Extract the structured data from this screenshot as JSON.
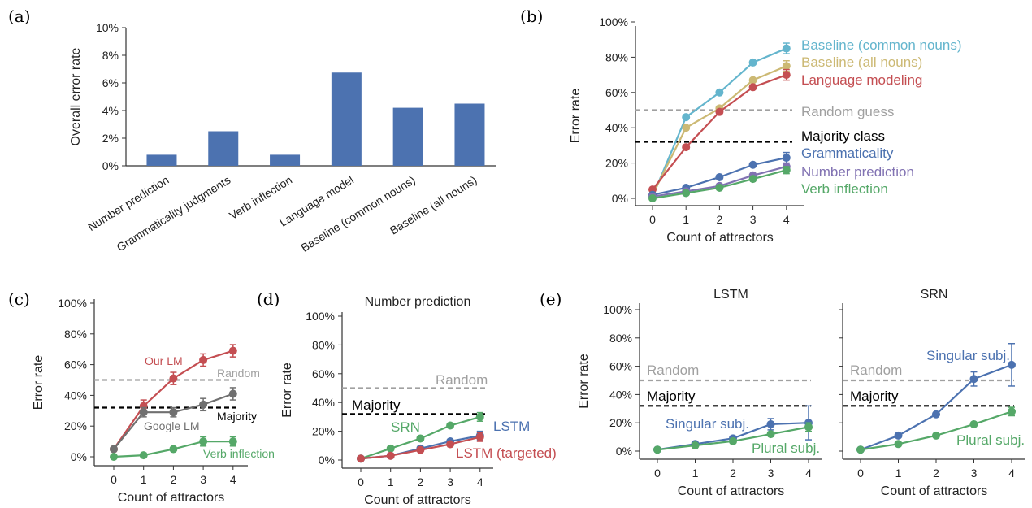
{
  "panels": {
    "a": "(a)",
    "b": "(b)",
    "c": "(c)",
    "d": "(d)",
    "e": "(e)"
  },
  "colors": {
    "blue": "#4c72b0",
    "cyan": "#64b5cd",
    "tan": "#ccb974",
    "red": "#c44e52",
    "gray": "#a0a0a0",
    "darkgray": "#707070",
    "purple": "#8172b2",
    "green": "#55a868",
    "black": "#000000"
  },
  "chart_data": [
    {
      "id": "a",
      "type": "bar",
      "ylabel": "Overall error rate",
      "ylim": [
        0,
        10
      ],
      "yticks": [
        0,
        2,
        4,
        6,
        8,
        10
      ],
      "tick_suffix": "%",
      "categories": [
        "Number prediction",
        "Grammaticality judgments",
        "Verb inflection",
        "Language model",
        "Baseline (common nouns)",
        "Baseline (all nouns)"
      ],
      "values": [
        0.8,
        2.5,
        0.8,
        6.75,
        4.2,
        4.5
      ]
    },
    {
      "id": "b",
      "type": "line",
      "xlabel": "Count of attractors",
      "ylabel": "Error rate",
      "x": [
        0,
        1,
        2,
        3,
        4
      ],
      "ylim": [
        0,
        100
      ],
      "yticks": [
        0,
        20,
        40,
        60,
        80,
        100
      ],
      "tick_suffix": "%",
      "series": [
        {
          "name": "Baseline (common nouns)",
          "color": "#64b5cd",
          "values": [
            1,
            46,
            60,
            77,
            85
          ],
          "err": [
            0,
            0,
            0,
            0,
            3
          ]
        },
        {
          "name": "Baseline (all nouns)",
          "color": "#ccb974",
          "values": [
            2,
            40,
            51,
            67,
            75
          ],
          "err": [
            0,
            0,
            0,
            0,
            3
          ]
        },
        {
          "name": "Language modeling",
          "color": "#c44e52",
          "values": [
            5,
            29,
            49,
            63,
            70
          ],
          "err": [
            0,
            0,
            0,
            0,
            3
          ]
        },
        {
          "name": "Grammaticality",
          "color": "#4c72b0",
          "values": [
            2,
            6,
            12,
            19,
            23
          ],
          "err": [
            0,
            0,
            0,
            0,
            3
          ]
        },
        {
          "name": "Number prediction",
          "color": "#8172b2",
          "values": [
            1,
            4,
            7,
            13,
            18
          ],
          "err": [
            0,
            0,
            0,
            0,
            2
          ]
        },
        {
          "name": "Verb inflection",
          "color": "#55a868",
          "values": [
            0,
            3,
            6,
            11,
            16
          ],
          "err": [
            0,
            0,
            0,
            0,
            2
          ]
        }
      ],
      "reference_lines": [
        {
          "name": "Random guess",
          "value": 50,
          "color": "#a0a0a0"
        },
        {
          "name": "Majority class",
          "value": 32,
          "color": "#000000"
        }
      ]
    },
    {
      "id": "c",
      "type": "line",
      "xlabel": "Count of attractors",
      "ylabel": "Error rate",
      "x": [
        0,
        1,
        2,
        3,
        4
      ],
      "ylim": [
        0,
        100
      ],
      "yticks": [
        0,
        20,
        40,
        60,
        80,
        100
      ],
      "tick_suffix": "%",
      "series": [
        {
          "name": "Our LM",
          "color": "#c44e52",
          "values": [
            5,
            33,
            51,
            63,
            69
          ],
          "err": [
            0,
            4,
            4,
            4,
            4
          ]
        },
        {
          "name": "Google LM",
          "color": "#707070",
          "values": [
            5,
            29,
            29,
            34,
            41
          ],
          "err": [
            0,
            3,
            3,
            4,
            4
          ]
        },
        {
          "name": "Verb inflection",
          "color": "#55a868",
          "values": [
            0,
            1,
            5,
            10,
            10
          ],
          "err": [
            0,
            1,
            1,
            3,
            3
          ]
        }
      ],
      "reference_lines": [
        {
          "name": "Random",
          "value": 50,
          "color": "#a0a0a0"
        },
        {
          "name": "Majority",
          "value": 32,
          "color": "#000000"
        }
      ]
    },
    {
      "id": "d",
      "type": "line",
      "title": "Number prediction",
      "xlabel": "Count of attractors",
      "ylabel": "Error rate",
      "x": [
        0,
        1,
        2,
        3,
        4
      ],
      "ylim": [
        0,
        100
      ],
      "yticks": [
        0,
        20,
        40,
        60,
        80,
        100
      ],
      "tick_suffix": "%",
      "series": [
        {
          "name": "SRN",
          "color": "#55a868",
          "values": [
            1,
            8,
            15,
            24,
            30
          ],
          "err": [
            0,
            0,
            0,
            0,
            3
          ]
        },
        {
          "name": "LSTM",
          "color": "#4c72b0",
          "values": [
            1,
            3,
            8,
            13,
            17
          ],
          "err": [
            0,
            0,
            0,
            0,
            3
          ]
        },
        {
          "name": "LSTM (targeted)",
          "color": "#c44e52",
          "values": [
            1,
            3,
            7,
            11,
            16
          ],
          "err": [
            0,
            0,
            0,
            0,
            3
          ]
        }
      ],
      "reference_lines": [
        {
          "name": "Random",
          "value": 50,
          "color": "#a0a0a0"
        },
        {
          "name": "Majority",
          "value": 32,
          "color": "#000000"
        }
      ]
    },
    {
      "id": "e1",
      "type": "line",
      "title": "LSTM",
      "xlabel": "Count of attractors",
      "ylabel": "Error rate",
      "x": [
        0,
        1,
        2,
        3,
        4
      ],
      "ylim": [
        0,
        100
      ],
      "yticks": [
        0,
        20,
        40,
        60,
        80,
        100
      ],
      "tick_suffix": "%",
      "series": [
        {
          "name": "Singular subj.",
          "color": "#4c72b0",
          "values": [
            1,
            5,
            9,
            19,
            20
          ],
          "err": [
            0,
            0,
            0,
            4,
            12
          ]
        },
        {
          "name": "Plural subj.",
          "color": "#55a868",
          "values": [
            1,
            4,
            7,
            12,
            17
          ],
          "err": [
            0,
            0,
            0,
            0,
            3
          ]
        }
      ],
      "reference_lines": [
        {
          "name": "Random",
          "value": 50,
          "color": "#a0a0a0"
        },
        {
          "name": "Majority",
          "value": 32,
          "color": "#000000"
        }
      ]
    },
    {
      "id": "e2",
      "type": "line",
      "title": "SRN",
      "xlabel": "Count of attractors",
      "x": [
        0,
        1,
        2,
        3,
        4
      ],
      "ylim": [
        0,
        100
      ],
      "yticks": [
        0,
        20,
        40,
        60,
        80,
        100
      ],
      "tick_suffix": "%",
      "series": [
        {
          "name": "Singular subj.",
          "color": "#4c72b0",
          "values": [
            1,
            11,
            26,
            51,
            61
          ],
          "err": [
            0,
            0,
            0,
            5,
            15
          ]
        },
        {
          "name": "Plural subj.",
          "color": "#55a868",
          "values": [
            1,
            5,
            11,
            19,
            28
          ],
          "err": [
            0,
            0,
            0,
            0,
            3
          ]
        }
      ],
      "reference_lines": [
        {
          "name": "Random",
          "value": 50,
          "color": "#a0a0a0"
        },
        {
          "name": "Majority",
          "value": 32,
          "color": "#000000"
        }
      ]
    }
  ]
}
